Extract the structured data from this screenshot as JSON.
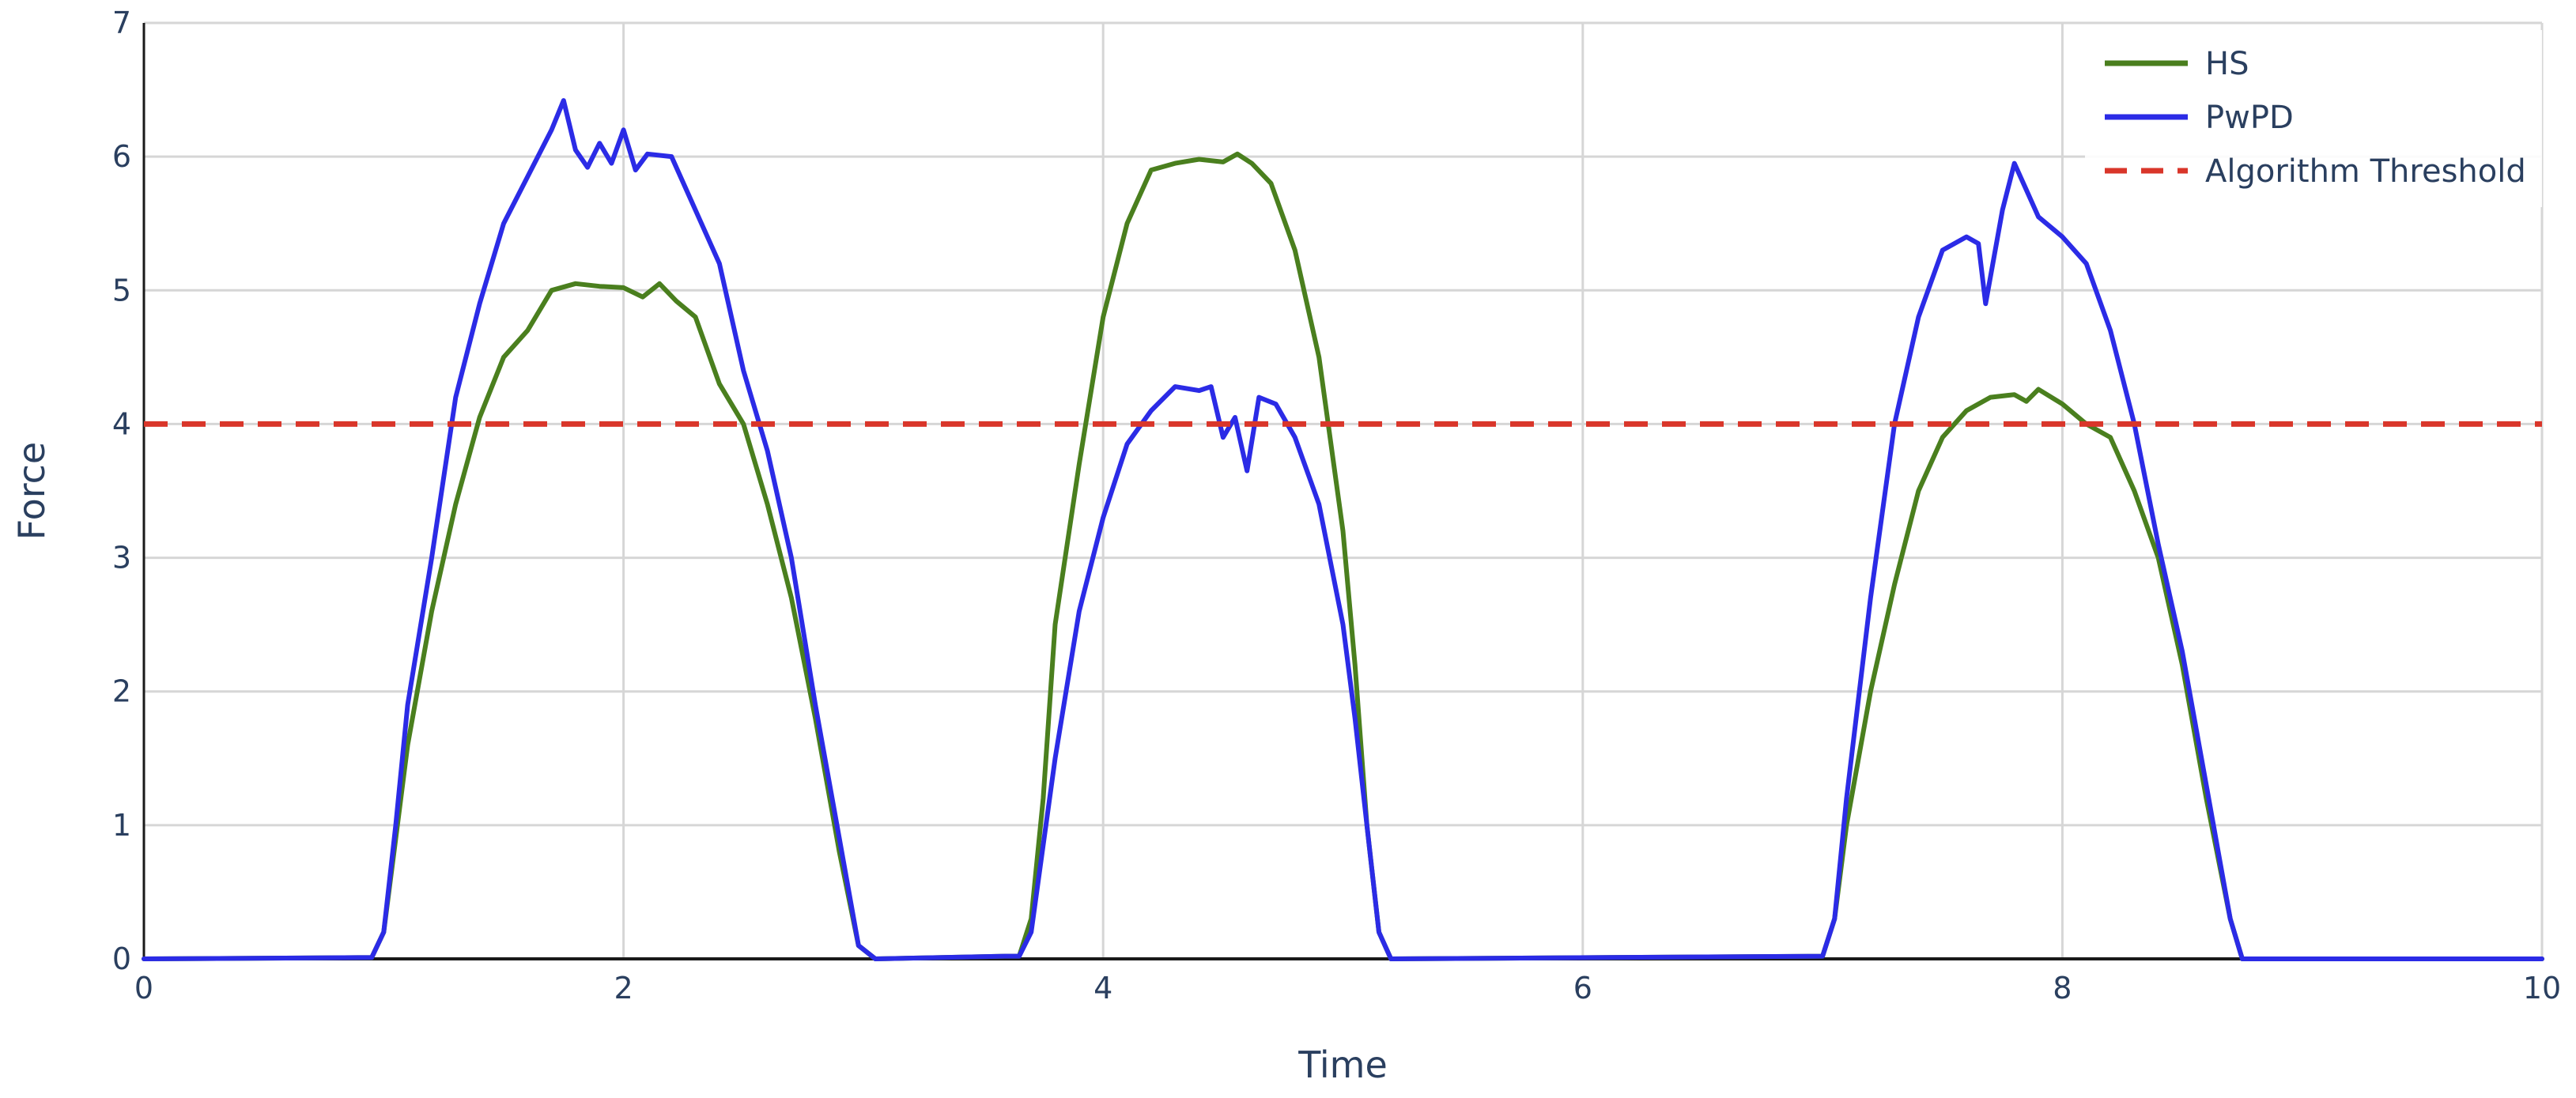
{
  "chart_data": {
    "type": "line",
    "title": "",
    "xlabel": "Time",
    "ylabel": "Force",
    "xlim": [
      0,
      10
    ],
    "ylim": [
      0,
      7
    ],
    "xticks": [
      0,
      2,
      4,
      6,
      8,
      10
    ],
    "yticks": [
      0,
      1,
      2,
      3,
      4,
      5,
      6,
      7
    ],
    "grid": true,
    "legend_position": "top-right",
    "series": [
      {
        "name": "HS",
        "color": "#4a7f1e",
        "style": "solid",
        "points": [
          [
            0,
            0
          ],
          [
            0.95,
            0.01
          ],
          [
            1.0,
            0.2
          ],
          [
            1.05,
            0.9
          ],
          [
            1.1,
            1.6
          ],
          [
            1.2,
            2.6
          ],
          [
            1.3,
            3.4
          ],
          [
            1.4,
            4.05
          ],
          [
            1.5,
            4.5
          ],
          [
            1.6,
            4.7
          ],
          [
            1.7,
            5.0
          ],
          [
            1.8,
            5.05
          ],
          [
            1.9,
            5.03
          ],
          [
            2.0,
            5.02
          ],
          [
            2.08,
            4.95
          ],
          [
            2.15,
            5.05
          ],
          [
            2.22,
            4.92
          ],
          [
            2.3,
            4.8
          ],
          [
            2.4,
            4.3
          ],
          [
            2.5,
            4.0
          ],
          [
            2.6,
            3.4
          ],
          [
            2.7,
            2.7
          ],
          [
            2.8,
            1.8
          ],
          [
            2.9,
            0.8
          ],
          [
            2.98,
            0.1
          ],
          [
            3.05,
            0
          ],
          [
            3.6,
            0.02
          ],
          [
            3.65,
            0.02
          ],
          [
            3.7,
            0.3
          ],
          [
            3.75,
            1.2
          ],
          [
            3.8,
            2.5
          ],
          [
            3.9,
            3.7
          ],
          [
            4.0,
            4.8
          ],
          [
            4.1,
            5.5
          ],
          [
            4.2,
            5.9
          ],
          [
            4.3,
            5.95
          ],
          [
            4.4,
            5.98
          ],
          [
            4.5,
            5.96
          ],
          [
            4.56,
            6.02
          ],
          [
            4.62,
            5.95
          ],
          [
            4.7,
            5.8
          ],
          [
            4.8,
            5.3
          ],
          [
            4.9,
            4.5
          ],
          [
            5.0,
            3.2
          ],
          [
            5.05,
            2.2
          ],
          [
            5.1,
            1.0
          ],
          [
            5.15,
            0.2
          ],
          [
            5.2,
            0
          ],
          [
            7.0,
            0.02
          ],
          [
            7.05,
            0.3
          ],
          [
            7.1,
            1.0
          ],
          [
            7.2,
            2.0
          ],
          [
            7.3,
            2.8
          ],
          [
            7.4,
            3.5
          ],
          [
            7.5,
            3.9
          ],
          [
            7.6,
            4.1
          ],
          [
            7.7,
            4.2
          ],
          [
            7.8,
            4.22
          ],
          [
            7.85,
            4.17
          ],
          [
            7.9,
            4.26
          ],
          [
            8.0,
            4.15
          ],
          [
            8.1,
            4.0
          ],
          [
            8.2,
            3.9
          ],
          [
            8.3,
            3.5
          ],
          [
            8.4,
            3.0
          ],
          [
            8.5,
            2.2
          ],
          [
            8.6,
            1.2
          ],
          [
            8.7,
            0.3
          ],
          [
            8.75,
            0
          ],
          [
            10,
            0
          ]
        ]
      },
      {
        "name": "PwPD",
        "color": "#2b2be6",
        "style": "solid",
        "points": [
          [
            0,
            0
          ],
          [
            0.95,
            0.01
          ],
          [
            1.0,
            0.2
          ],
          [
            1.05,
            1.0
          ],
          [
            1.1,
            1.9
          ],
          [
            1.2,
            3.0
          ],
          [
            1.3,
            4.2
          ],
          [
            1.4,
            4.9
          ],
          [
            1.5,
            5.5
          ],
          [
            1.6,
            5.85
          ],
          [
            1.7,
            6.2
          ],
          [
            1.75,
            6.42
          ],
          [
            1.8,
            6.05
          ],
          [
            1.85,
            5.92
          ],
          [
            1.9,
            6.1
          ],
          [
            1.95,
            5.95
          ],
          [
            2.0,
            6.2
          ],
          [
            2.05,
            5.9
          ],
          [
            2.1,
            6.02
          ],
          [
            2.2,
            6.0
          ],
          [
            2.3,
            5.6
          ],
          [
            2.4,
            5.2
          ],
          [
            2.5,
            4.4
          ],
          [
            2.6,
            3.8
          ],
          [
            2.7,
            3.0
          ],
          [
            2.8,
            1.9
          ],
          [
            2.9,
            0.9
          ],
          [
            2.98,
            0.1
          ],
          [
            3.05,
            0
          ],
          [
            3.6,
            0.02
          ],
          [
            3.65,
            0.02
          ],
          [
            3.7,
            0.2
          ],
          [
            3.8,
            1.5
          ],
          [
            3.9,
            2.6
          ],
          [
            4.0,
            3.3
          ],
          [
            4.1,
            3.85
          ],
          [
            4.2,
            4.1
          ],
          [
            4.3,
            4.28
          ],
          [
            4.4,
            4.25
          ],
          [
            4.45,
            4.28
          ],
          [
            4.5,
            3.9
          ],
          [
            4.55,
            4.05
          ],
          [
            4.6,
            3.65
          ],
          [
            4.65,
            4.2
          ],
          [
            4.72,
            4.15
          ],
          [
            4.8,
            3.9
          ],
          [
            4.9,
            3.4
          ],
          [
            5.0,
            2.5
          ],
          [
            5.05,
            1.8
          ],
          [
            5.1,
            1.0
          ],
          [
            5.15,
            0.2
          ],
          [
            5.2,
            0
          ],
          [
            7.0,
            0.02
          ],
          [
            7.05,
            0.3
          ],
          [
            7.1,
            1.2
          ],
          [
            7.2,
            2.7
          ],
          [
            7.3,
            4.0
          ],
          [
            7.4,
            4.8
          ],
          [
            7.5,
            5.3
          ],
          [
            7.6,
            5.4
          ],
          [
            7.65,
            5.35
          ],
          [
            7.68,
            4.9
          ],
          [
            7.7,
            5.1
          ],
          [
            7.75,
            5.6
          ],
          [
            7.8,
            5.95
          ],
          [
            7.85,
            5.75
          ],
          [
            7.9,
            5.55
          ],
          [
            8.0,
            5.4
          ],
          [
            8.1,
            5.2
          ],
          [
            8.2,
            4.7
          ],
          [
            8.3,
            4.0
          ],
          [
            8.4,
            3.1
          ],
          [
            8.5,
            2.3
          ],
          [
            8.6,
            1.3
          ],
          [
            8.7,
            0.3
          ],
          [
            8.75,
            0
          ],
          [
            10,
            0
          ]
        ]
      },
      {
        "name": "Algorithm Threshold",
        "color": "#d9362a",
        "style": "dashed",
        "points": [
          [
            0,
            4
          ],
          [
            10,
            4
          ]
        ]
      }
    ]
  }
}
